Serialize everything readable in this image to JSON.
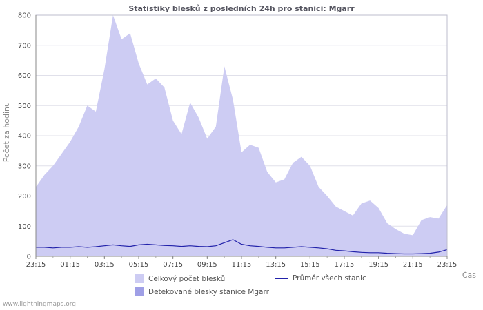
{
  "watermark": "www.lightningmaps.org",
  "legend": {
    "items": [
      {
        "label": "Celkový počet blesků",
        "swatch": "area-light"
      },
      {
        "label": "Průměr všech stanic",
        "swatch": "line-blue"
      },
      {
        "label": "Detekované blesky stanice Mgarr",
        "swatch": "area-dark"
      }
    ]
  },
  "colors": {
    "area_total": "#cdccf3",
    "area_station": "#9f9fe6",
    "line_average": "#2222aa",
    "grid": "#e0e0ea",
    "axis": "#888888",
    "border": "#bdbdcc"
  },
  "chart_data": {
    "type": "area",
    "title": "Statistiky blesků z posledních 24h pro stanici: Mgarr",
    "xlabel": "Čas",
    "ylabel": "Počet za hodinu",
    "ylim": [
      0,
      800
    ],
    "y_ticks": [
      0,
      100,
      200,
      300,
      400,
      500,
      600,
      700,
      800
    ],
    "x_tick_labels": [
      "23:15",
      "01:15",
      "03:15",
      "05:15",
      "07:15",
      "09:15",
      "11:15",
      "13:15",
      "15:15",
      "17:15",
      "19:15",
      "21:15",
      "23:15"
    ],
    "x_step_minutes": 30,
    "grid": true,
    "legend_position": "bottom",
    "series": [
      {
        "name": "Celkový počet blesků",
        "type": "area",
        "color": "#cdccf3",
        "values": [
          230,
          270,
          300,
          340,
          380,
          430,
          500,
          480,
          620,
          800,
          720,
          740,
          640,
          570,
          590,
          560,
          450,
          405,
          510,
          460,
          390,
          430,
          630,
          520,
          345,
          370,
          360,
          280,
          245,
          255,
          310,
          330,
          300,
          230,
          200,
          165,
          150,
          135,
          175,
          185,
          160,
          110,
          90,
          75,
          70,
          120,
          130,
          125,
          170
        ]
      },
      {
        "name": "Detekované blesky stanice Mgarr",
        "type": "area",
        "color": "#9f9fe6",
        "values": [
          0,
          0,
          0,
          0,
          0,
          0,
          0,
          0,
          0,
          0,
          0,
          0,
          0,
          0,
          0,
          0,
          0,
          0,
          0,
          0,
          0,
          0,
          0,
          0,
          0,
          0,
          0,
          0,
          0,
          0,
          0,
          0,
          0,
          0,
          0,
          0,
          0,
          0,
          0,
          0,
          0,
          0,
          0,
          0,
          0,
          0,
          0,
          0,
          0
        ]
      },
      {
        "name": "Průměr všech stanic",
        "type": "line",
        "color": "#2222aa",
        "values": [
          30,
          30,
          28,
          30,
          30,
          32,
          30,
          32,
          35,
          38,
          35,
          33,
          38,
          40,
          38,
          36,
          35,
          33,
          35,
          33,
          32,
          35,
          45,
          55,
          40,
          35,
          33,
          30,
          28,
          28,
          30,
          32,
          30,
          28,
          25,
          20,
          18,
          15,
          13,
          12,
          12,
          10,
          9,
          8,
          8,
          9,
          10,
          14,
          22
        ]
      }
    ]
  }
}
